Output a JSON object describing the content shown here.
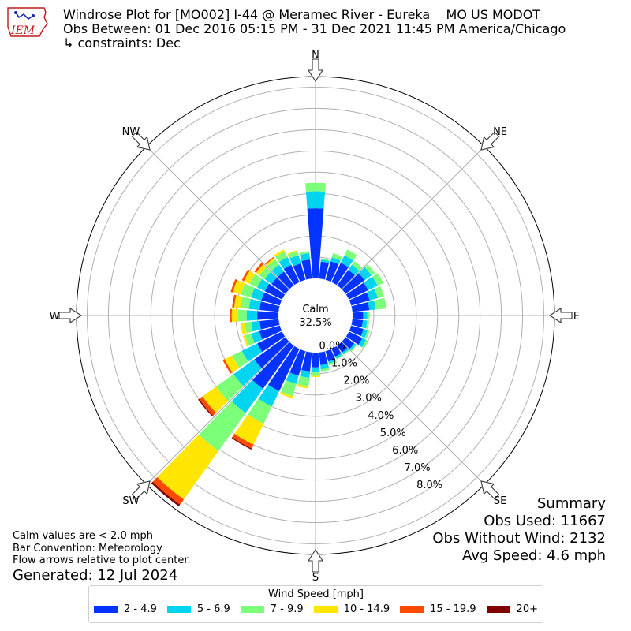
{
  "header": {
    "title_line1": "Windrose Plot for [MO002] I-44 @ Meramec River - Eureka    MO US MODOT",
    "title_line2": "Obs Between: 01 Dec 2016 05:15 PM - 31 Dec 2021 11:45 PM America/Chicago",
    "title_line3": "↳ constraints: Dec",
    "logo_text": "IEM"
  },
  "summary": {
    "heading": "Summary",
    "obs_used": "Obs Used: 11667",
    "obs_without_wind": "Obs Without Wind: 2132",
    "avg_speed": "Avg Speed: 4.6 mph"
  },
  "notes": {
    "calm_note": "Calm values are < 2.0 mph",
    "bar_convention": "Bar Convention: Meteorology",
    "flow_arrows": "Flow arrows relative to plot center.",
    "generated": "Generated: 12 Jul 2024"
  },
  "legend": {
    "title": "Wind Speed [mph]",
    "items": [
      {
        "label": "2 - 4.9",
        "color": "#0433ff"
      },
      {
        "label": "5 - 6.9",
        "color": "#00d4f0"
      },
      {
        "label": "7 - 9.9",
        "color": "#7cff79"
      },
      {
        "label": "10 - 14.9",
        "color": "#ffe600"
      },
      {
        "label": "15 - 19.9",
        "color": "#ff4a00"
      },
      {
        "label": "20+",
        "color": "#800000"
      }
    ]
  },
  "chart_data": {
    "type": "windrose",
    "calm_label": "Calm",
    "calm_value": "32.5%",
    "radial_tick_labels": [
      "0.0%",
      "1.0%",
      "2.0%",
      "3.0%",
      "4.0%",
      "5.0%",
      "6.0%",
      "7.0%",
      "8.0%"
    ],
    "rmax": 9.5,
    "directions": [
      "N",
      "NE",
      "E",
      "SE",
      "S",
      "SW",
      "W",
      "NW"
    ],
    "bins": [
      "2 - 4.9",
      "5 - 6.9",
      "7 - 9.9",
      "10 - 14.9",
      "15 - 19.9",
      "20+"
    ],
    "sector_width_deg": 10,
    "sectors": [
      {
        "dir": 0,
        "values": [
          3.3,
          0.8,
          0.4,
          0.0,
          0.0,
          0.0
        ]
      },
      {
        "dir": 10,
        "values": [
          0.8,
          0.1,
          0.05,
          0.0,
          0.0,
          0.0
        ]
      },
      {
        "dir": 20,
        "values": [
          0.9,
          0.2,
          0.2,
          0.0,
          0.0,
          0.0
        ]
      },
      {
        "dir": 30,
        "values": [
          1.0,
          0.4,
          0.3,
          0.0,
          0.0,
          0.0
        ]
      },
      {
        "dir": 40,
        "values": [
          0.9,
          0.3,
          0.2,
          0.0,
          0.0,
          0.0
        ]
      },
      {
        "dir": 50,
        "values": [
          1.1,
          0.4,
          0.2,
          0.0,
          0.0,
          0.0
        ]
      },
      {
        "dir": 60,
        "values": [
          1.0,
          0.5,
          0.3,
          0.0,
          0.0,
          0.0
        ]
      },
      {
        "dir": 70,
        "values": [
          0.9,
          0.4,
          0.3,
          0.0,
          0.0,
          0.0
        ]
      },
      {
        "dir": 80,
        "values": [
          0.8,
          0.3,
          0.5,
          0.0,
          0.0,
          0.0
        ]
      },
      {
        "dir": 90,
        "values": [
          0.5,
          0.2,
          0.1,
          0.0,
          0.0,
          0.0
        ]
      },
      {
        "dir": 100,
        "values": [
          0.5,
          0.2,
          0.1,
          0.0,
          0.0,
          0.0
        ]
      },
      {
        "dir": 110,
        "values": [
          0.6,
          0.2,
          0.1,
          0.0,
          0.0,
          0.0
        ]
      },
      {
        "dir": 120,
        "values": [
          0.7,
          0.2,
          0.1,
          0.0,
          0.0,
          0.0
        ]
      },
      {
        "dir": 130,
        "values": [
          0.5,
          0.1,
          0.05,
          0.0,
          0.0,
          0.0
        ]
      },
      {
        "dir": 140,
        "values": [
          0.4,
          0.1,
          0.05,
          0.0,
          0.0,
          0.0
        ]
      },
      {
        "dir": 150,
        "values": [
          0.4,
          0.1,
          0.05,
          0.0,
          0.0,
          0.0
        ]
      },
      {
        "dir": 160,
        "values": [
          0.5,
          0.1,
          0.1,
          0.0,
          0.0,
          0.0
        ]
      },
      {
        "dir": 170,
        "values": [
          0.6,
          0.2,
          0.1,
          0.0,
          0.0,
          0.0
        ]
      },
      {
        "dir": 180,
        "values": [
          0.7,
          0.2,
          0.2,
          0.05,
          0.0,
          0.0
        ]
      },
      {
        "dir": 190,
        "values": [
          0.9,
          0.3,
          0.4,
          0.1,
          0.0,
          0.0
        ]
      },
      {
        "dir": 200,
        "values": [
          1.2,
          0.4,
          0.6,
          0.1,
          0.0,
          0.0
        ]
      },
      {
        "dir": 210,
        "values": [
          2.2,
          0.8,
          0.9,
          1.1,
          0.2,
          0.05
        ]
      },
      {
        "dir": 220,
        "values": [
          2.5,
          1.4,
          2.2,
          2.8,
          0.3,
          0.1
        ]
      },
      {
        "dir": 230,
        "values": [
          1.8,
          1.2,
          1.0,
          0.8,
          0.2,
          0.05
        ]
      },
      {
        "dir": 240,
        "values": [
          1.3,
          0.8,
          0.5,
          0.4,
          0.1,
          0.0
        ]
      },
      {
        "dir": 250,
        "values": [
          1.0,
          0.4,
          0.3,
          0.1,
          0.0,
          0.0
        ]
      },
      {
        "dir": 260,
        "values": [
          0.9,
          0.4,
          0.3,
          0.2,
          0.0,
          0.0
        ]
      },
      {
        "dir": 270,
        "values": [
          1.0,
          0.5,
          0.4,
          0.3,
          0.1,
          0.0
        ]
      },
      {
        "dir": 280,
        "values": [
          0.9,
          0.5,
          0.4,
          0.3,
          0.1,
          0.0
        ]
      },
      {
        "dir": 290,
        "values": [
          0.9,
          0.5,
          0.5,
          0.4,
          0.1,
          0.0
        ]
      },
      {
        "dir": 300,
        "values": [
          0.9,
          0.4,
          0.4,
          0.3,
          0.1,
          0.0
        ]
      },
      {
        "dir": 310,
        "values": [
          0.8,
          0.4,
          0.3,
          0.2,
          0.1,
          0.0
        ]
      },
      {
        "dir": 320,
        "values": [
          0.8,
          0.4,
          0.3,
          0.1,
          0.05,
          0.0
        ]
      },
      {
        "dir": 330,
        "values": [
          0.9,
          0.4,
          0.3,
          0.1,
          0.0,
          0.0
        ]
      },
      {
        "dir": 340,
        "values": [
          0.8,
          0.4,
          0.2,
          0.05,
          0.0,
          0.0
        ]
      },
      {
        "dir": 350,
        "values": [
          0.9,
          0.3,
          0.1,
          0.0,
          0.0,
          0.0
        ]
      }
    ]
  }
}
